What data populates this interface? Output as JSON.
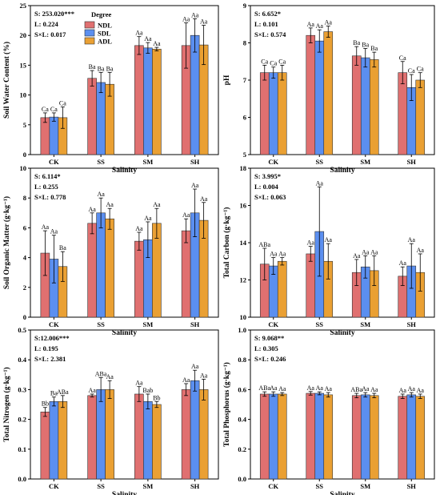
{
  "legend": {
    "title": "Degree",
    "items": [
      "NDL",
      "SDL",
      "ADL"
    ]
  },
  "colors": {
    "NDL": "#e07070",
    "SDL": "#5b8ff0",
    "ADL": "#eaa033"
  },
  "chart_data": [
    {
      "type": "bar",
      "ylabel": "Soil Water Content (%)",
      "xlabel": "Salinity",
      "categories": [
        "CK",
        "SS",
        "SM",
        "SH"
      ],
      "ylim": [
        0,
        25
      ],
      "yticks": [
        "0",
        "5",
        "10",
        "15",
        "20",
        "25"
      ],
      "stats": [
        "S: 253.020***",
        "L: 0.224",
        "S×L: 0.017"
      ],
      "series": [
        {
          "name": "NDL",
          "values": [
            6.2,
            12.8,
            18.3,
            18.3
          ],
          "err": [
            0.8,
            1.3,
            1.5,
            3.8
          ],
          "labels": [
            "Ca",
            "Ba",
            "Aa",
            "Aa"
          ]
        },
        {
          "name": "SDL",
          "values": [
            6.3,
            12.1,
            17.9,
            20.0
          ],
          "err": [
            0.7,
            1.7,
            0.9,
            2.8
          ],
          "labels": [
            "Ca",
            "Ba",
            "Aa",
            "Aa"
          ]
        },
        {
          "name": "ADL",
          "values": [
            6.2,
            11.8,
            17.7,
            18.4
          ],
          "err": [
            1.8,
            2.0,
            0.3,
            3.3
          ],
          "labels": [
            "Ca",
            "Ba",
            "Aa",
            "Aa"
          ]
        }
      ]
    },
    {
      "type": "bar",
      "ylabel": "pH",
      "xlabel": "Salinity",
      "categories": [
        "CK",
        "SS",
        "SM",
        "SH"
      ],
      "ylim": [
        5,
        9
      ],
      "yticks": [
        "5",
        "6",
        "7",
        "8",
        "9"
      ],
      "stats": [
        "S: 6.652*",
        "L: 0.101",
        "S×L: 0.574"
      ],
      "series": [
        {
          "name": "NDL",
          "values": [
            7.2,
            8.2,
            7.65,
            7.2
          ],
          "err": [
            0.2,
            0.2,
            0.25,
            0.3
          ],
          "labels": [
            "Ca",
            "Aa",
            "Ba",
            "Ca"
          ]
        },
        {
          "name": "SDL",
          "values": [
            7.2,
            8.05,
            7.6,
            6.8
          ],
          "err": [
            0.15,
            0.3,
            0.25,
            0.35
          ],
          "labels": [
            "Ca",
            "Aa",
            "Ba",
            "Ca"
          ]
        },
        {
          "name": "ADL",
          "values": [
            7.2,
            8.3,
            7.55,
            7.0
          ],
          "err": [
            0.2,
            0.15,
            0.2,
            0.2
          ],
          "labels": [
            "Ca",
            "Aa",
            "Ba",
            "Ca"
          ]
        }
      ]
    },
    {
      "type": "bar",
      "ylabel": "Soil Organic Matter (g·kg⁻¹)",
      "xlabel": "Salinity",
      "categories": [
        "CK",
        "SS",
        "SM",
        "SH"
      ],
      "ylim": [
        0,
        10
      ],
      "yticks": [
        "0",
        "2",
        "4",
        "6",
        "8",
        "10"
      ],
      "stats": [
        "S: 6.114*",
        "L: 0.255",
        "S×L: 0.778"
      ],
      "series": [
        {
          "name": "NDL",
          "values": [
            4.3,
            6.3,
            5.1,
            5.8
          ],
          "err": [
            1.5,
            0.7,
            0.6,
            0.8
          ],
          "labels": [
            "Aa",
            "Aa",
            "Aa",
            "Aa"
          ]
        },
        {
          "name": "SDL",
          "values": [
            3.9,
            7.0,
            5.2,
            7.0
          ],
          "err": [
            1.6,
            1.0,
            1.2,
            1.6
          ],
          "labels": [
            "Aa",
            "Aa",
            "Aa",
            "Aa"
          ]
        },
        {
          "name": "ADL",
          "values": [
            3.4,
            6.6,
            6.3,
            6.5
          ],
          "err": [
            1.0,
            0.7,
            1.0,
            1.2
          ],
          "labels": [
            "Ba",
            "Aa",
            "Aa",
            "Aa"
          ]
        }
      ]
    },
    {
      "type": "bar",
      "ylabel": "Total Carbon (g·kg⁻¹)",
      "xlabel": "Salinity",
      "categories": [
        "CK",
        "SS",
        "SM",
        "SH"
      ],
      "ylim": [
        10,
        18
      ],
      "yticks": [
        "10",
        "12",
        "14",
        "16",
        "18"
      ],
      "stats": [
        "S: 3.995*",
        "L: 0.004",
        "S×L: 0.063"
      ],
      "series": [
        {
          "name": "NDL",
          "values": [
            12.85,
            13.4,
            12.4,
            12.2
          ],
          "err": [
            0.85,
            0.4,
            0.7,
            0.5
          ],
          "labels": [
            "ABa",
            "Aa",
            "Aa",
            "Aa"
          ]
        },
        {
          "name": "SDL",
          "values": [
            12.75,
            14.6,
            12.7,
            12.75
          ],
          "err": [
            0.45,
            2.4,
            0.6,
            1.2
          ],
          "labels": [
            "Aa",
            "Aa",
            "Aa",
            "Aa"
          ]
        },
        {
          "name": "ADL",
          "values": [
            13.0,
            13.0,
            12.5,
            12.4
          ],
          "err": [
            0.2,
            0.95,
            0.8,
            1.0
          ],
          "labels": [
            "Aa",
            "Aa",
            "Aa",
            "Aa"
          ]
        }
      ]
    },
    {
      "type": "bar",
      "ylabel": "Total Nitrogen (g·kg⁻¹)",
      "xlabel": "Salinity",
      "categories": [
        "CK",
        "SS",
        "SM",
        "SH"
      ],
      "ylim": [
        0,
        0.5
      ],
      "yticks": [
        "0.0",
        "0.1",
        "0.2",
        "0.3",
        "0.4",
        "0.5"
      ],
      "stats": [
        "S:12.006***",
        "L: 0.195",
        "S×L: 2.381"
      ],
      "series": [
        {
          "name": "NDL",
          "values": [
            0.225,
            0.28,
            0.285,
            0.3
          ],
          "err": [
            0.015,
            0.005,
            0.025,
            0.02
          ],
          "labels": [
            "Bb",
            "Aa",
            "Aa",
            "Aa"
          ]
        },
        {
          "name": "SDL",
          "values": [
            0.26,
            0.3,
            0.26,
            0.33
          ],
          "err": [
            0.015,
            0.04,
            0.025,
            0.035
          ],
          "labels": [
            "Ba",
            "ABa",
            "Bab",
            "Aa"
          ]
        },
        {
          "name": "ADL",
          "values": [
            0.26,
            0.3,
            0.25,
            0.3
          ],
          "err": [
            0.02,
            0.03,
            0.01,
            0.035
          ],
          "labels": [
            "ABa",
            "Aa",
            "Bb",
            "Aa"
          ]
        }
      ]
    },
    {
      "type": "bar",
      "ylabel": "Total Phosphorus (g·kg⁻¹)",
      "xlabel": "Salinity",
      "categories": [
        "CK",
        "SS",
        "SM",
        "SH"
      ],
      "ylim": [
        0,
        1.0
      ],
      "yticks": [
        "0.0",
        "0.2",
        "0.4",
        "0.6",
        "0.8",
        "1.0"
      ],
      "stats": [
        "S: 9.068**",
        "L: 0.305",
        "S×L: 0.246"
      ],
      "series": [
        {
          "name": "NDL",
          "values": [
            0.57,
            0.575,
            0.56,
            0.555
          ],
          "err": [
            0.015,
            0.012,
            0.015,
            0.015
          ],
          "labels": [
            "ABa",
            "Aa",
            "ABa",
            "Aa"
          ]
        },
        {
          "name": "SDL",
          "values": [
            0.57,
            0.575,
            0.565,
            0.565
          ],
          "err": [
            0.015,
            0.01,
            0.015,
            0.015
          ],
          "labels": [
            "Aa",
            "Aa",
            "Aa",
            "Aa"
          ]
        },
        {
          "name": "ADL",
          "values": [
            0.57,
            0.565,
            0.56,
            0.555
          ],
          "err": [
            0.01,
            0.015,
            0.015,
            0.015
          ],
          "labels": [
            "Aa",
            "Aa",
            "Aa",
            "Aa"
          ]
        }
      ]
    }
  ]
}
